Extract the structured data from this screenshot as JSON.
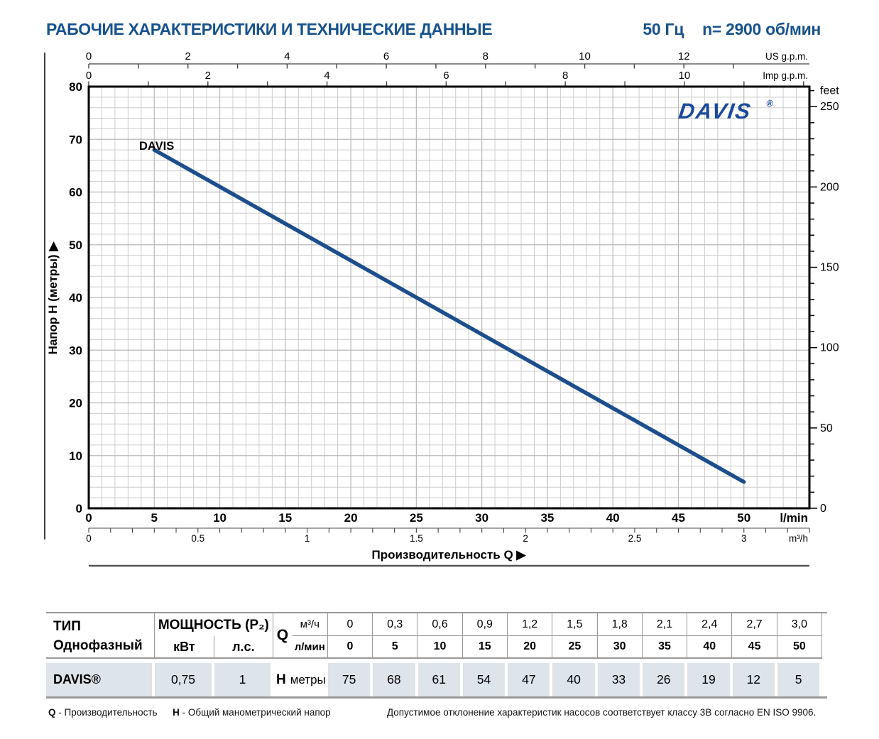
{
  "page": {
    "title": "РАБОЧИЕ ХАРАКТЕРИСТИКИ И ТЕХНИЧЕСКИЕ ДАННЫЕ",
    "frequency": "50 Гц",
    "speed": "n= 2900 об/мин",
    "accent_color": "#17528c"
  },
  "chart_data": {
    "type": "line",
    "title": "",
    "xlabel": "Производительность Q",
    "ylabel": "Напор Н (метры)",
    "arrow": "▶",
    "plot": {
      "xlim_lmin": [
        0,
        55
      ],
      "ylim_m": [
        0,
        80
      ],
      "grid_minor_lmin": 1,
      "grid_minor_m": 2,
      "grid_major_lmin": 5,
      "grid_major_m": 10,
      "grid_on": true
    },
    "axes": {
      "us_gpm": {
        "label": "US g.p.m.",
        "lmin_per_unit": 3.785,
        "labels": [
          0,
          2,
          4,
          6,
          8,
          10,
          12
        ],
        "tick_max": 13
      },
      "imp_gpm": {
        "label": "Imp g.p.m.",
        "lmin_per_unit": 4.546,
        "labels": [
          0,
          2,
          4,
          6,
          8,
          10
        ],
        "tick_max": 12
      },
      "lmin": {
        "label": "l/min",
        "labels": [
          0,
          5,
          10,
          15,
          20,
          25,
          30,
          35,
          40,
          45,
          50
        ]
      },
      "m3h": {
        "label": "m³/h",
        "lmin_per_unit": 16.667,
        "labels": [
          "0",
          "0.5",
          "1",
          "1.5",
          "2",
          "2.5",
          "3"
        ],
        "tick_step": 0.1,
        "tick_max": 3.3
      },
      "meters": {
        "label": "Напор Н (метры)",
        "labels": [
          0,
          10,
          20,
          30,
          40,
          50,
          60,
          70,
          80
        ]
      },
      "feet": {
        "label": "feet",
        "m_per_unit": 0.3048,
        "labels": [
          0,
          50,
          100,
          150,
          200,
          250
        ],
        "tick_step": 10,
        "tick_max": 260
      }
    },
    "series": [
      {
        "name": "DAVIS",
        "color": "#1d4e8c",
        "points_lmin_m": [
          [
            5,
            68
          ],
          [
            10,
            61
          ],
          [
            15,
            54
          ],
          [
            20,
            47
          ],
          [
            25,
            40
          ],
          [
            30,
            33
          ],
          [
            35,
            26
          ],
          [
            40,
            19
          ],
          [
            45,
            12
          ],
          [
            50,
            5
          ]
        ]
      }
    ],
    "logo": {
      "text": "DAVIS",
      "reg": "®",
      "color": "#1a4a9b"
    }
  },
  "table": {
    "type_header": "ТИП",
    "type_sub": "Однофазный",
    "power_header": "МОЩНОСТЬ (P₂)",
    "power_units": [
      "кВт",
      "л.с."
    ],
    "q_label": "Q",
    "q_units": [
      "м³/ч",
      "л/мин"
    ],
    "h_label": "H",
    "h_unit": "метры",
    "model": "DAVIS®",
    "power_values": [
      "0,75",
      "1"
    ],
    "q_m3h": [
      "0",
      "0,3",
      "0,6",
      "0,9",
      "1,2",
      "1,5",
      "1,8",
      "2,1",
      "2,4",
      "2,7",
      "3,0"
    ],
    "q_lmin": [
      "0",
      "5",
      "10",
      "15",
      "20",
      "25",
      "30",
      "35",
      "40",
      "45",
      "50"
    ],
    "h_values": [
      "75",
      "68",
      "61",
      "54",
      "47",
      "40",
      "33",
      "26",
      "19",
      "12",
      "5"
    ],
    "row_bg": "#dde4ea"
  },
  "footnotes": {
    "q_abbr": "Q",
    "q_text": "- Производительность",
    "h_abbr": "H",
    "h_text": "- Общий манометрический напор",
    "tolerance": "Допустимое отклонение характеристик насосов соответствует классу 3В согласно EN ISO 9906."
  }
}
